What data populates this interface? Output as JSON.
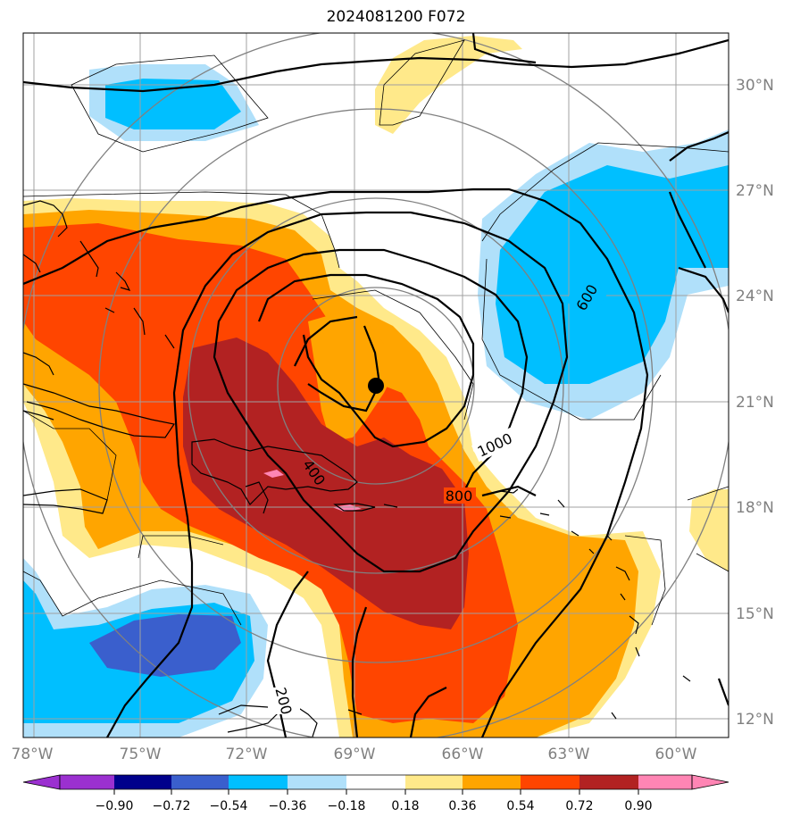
{
  "title": "2024081200 F072",
  "latitude_labels": [
    "30°N",
    "27°N",
    "24°N",
    "21°N",
    "18°N",
    "15°N",
    "12°N"
  ],
  "longitude_labels": [
    "78°W",
    "75°W",
    "72°W",
    "69°W",
    "66°W",
    "63°W",
    "60°W"
  ],
  "contour_labels": [
    "600",
    "1000",
    "800",
    "400",
    "200"
  ],
  "colorbar": {
    "ticks": [
      "−0.90",
      "−0.72",
      "−0.54",
      "−0.36",
      "−0.18",
      "0.18",
      "0.36",
      "0.54",
      "0.72",
      "0.90"
    ],
    "colors": [
      "#9b30d0",
      "#00008b",
      "#3a5fcd",
      "#00bfff",
      "#b0e0fa",
      "#ffffff",
      "#ffe98a",
      "#ffa500",
      "#ff4500",
      "#b22222",
      "#ff85b4"
    ]
  },
  "storm_marker": "center-dot"
}
